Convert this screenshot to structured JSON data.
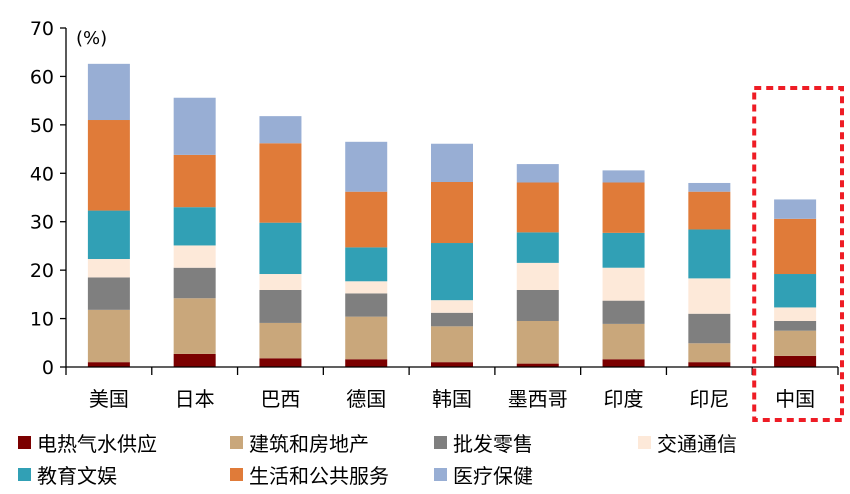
{
  "chart_data": {
    "type": "bar",
    "stacked": true,
    "title": "",
    "xlabel": "",
    "ylabel": "",
    "unit_label": "(%)",
    "ylim": [
      0,
      70
    ],
    "yticks": [
      0,
      10,
      20,
      30,
      40,
      50,
      60,
      70
    ],
    "categories": [
      "美国",
      "日本",
      "巴西",
      "德国",
      "韩国",
      "墨西哥",
      "印度",
      "印尼",
      "中国"
    ],
    "highlight": "中国",
    "highlight_color": "#ee1c25",
    "legend_position": "bottom",
    "series": [
      {
        "name": "电热气水供应",
        "color": "#7b0000",
        "values": [
          1.0,
          2.7,
          1.8,
          1.6,
          1.0,
          0.7,
          1.6,
          1.0,
          2.3
        ]
      },
      {
        "name": "建筑和房地产",
        "color": "#c9a77b",
        "values": [
          10.8,
          11.5,
          7.3,
          8.8,
          7.4,
          8.8,
          7.3,
          3.9,
          5.2
        ]
      },
      {
        "name": "批发零售",
        "color": "#7f7f7f",
        "values": [
          6.7,
          6.3,
          6.8,
          4.8,
          2.8,
          6.4,
          4.8,
          6.1,
          2.0
        ]
      },
      {
        "name": "交通通信",
        "color": "#fde9d9",
        "values": [
          3.8,
          4.6,
          3.3,
          2.5,
          2.6,
          5.6,
          6.8,
          7.3,
          2.8
        ]
      },
      {
        "name": "教育文娱",
        "color": "#31a0b5",
        "values": [
          10.0,
          7.9,
          10.6,
          7.0,
          11.8,
          6.3,
          7.2,
          10.1,
          6.9
        ]
      },
      {
        "name": "生活和公共服务",
        "color": "#e07b39",
        "values": [
          18.7,
          10.8,
          16.4,
          11.5,
          12.6,
          10.3,
          10.4,
          7.8,
          11.4
        ]
      },
      {
        "name": "医疗保健",
        "color": "#98aed4",
        "values": [
          11.6,
          11.8,
          5.6,
          10.3,
          7.9,
          3.8,
          2.5,
          1.8,
          4.0
        ]
      }
    ]
  }
}
